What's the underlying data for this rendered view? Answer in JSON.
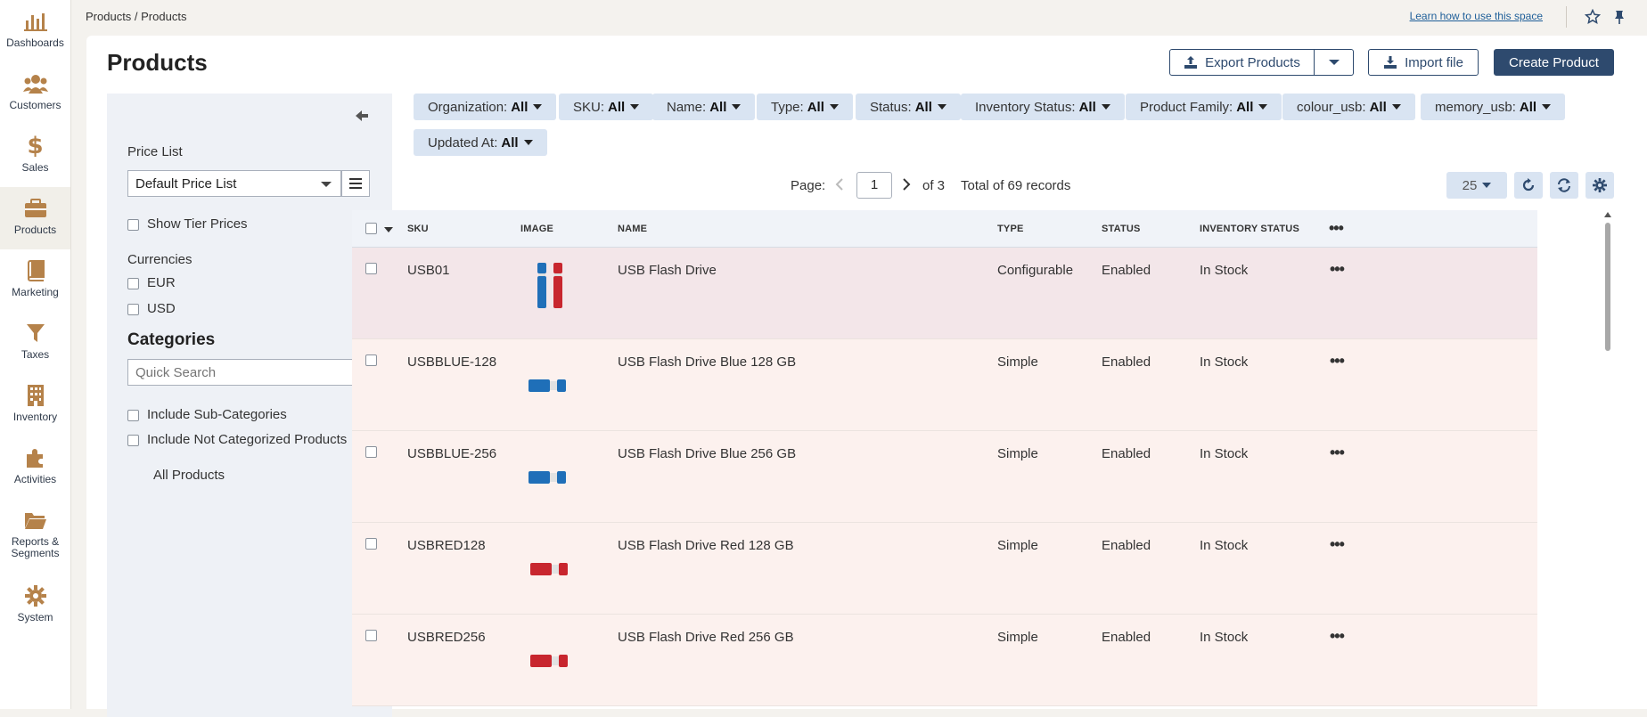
{
  "nav": {
    "items": [
      {
        "label": "Dashboards",
        "icon": "bar-chart-icon"
      },
      {
        "label": "Customers",
        "icon": "users-icon"
      },
      {
        "label": "Sales",
        "icon": "dollar-icon"
      },
      {
        "label": "Products",
        "icon": "briefcase-icon"
      },
      {
        "label": "Marketing",
        "icon": "book-icon"
      },
      {
        "label": "Taxes",
        "icon": "funnel-icon"
      },
      {
        "label": "Inventory",
        "icon": "building-icon"
      },
      {
        "label": "Activities",
        "icon": "puzzle-icon"
      },
      {
        "label": "Reports &\nSegments",
        "icon": "folder-icon"
      },
      {
        "label": "System",
        "icon": "gear-icon"
      }
    ],
    "active": "Products",
    "icon_color": "#b5824a"
  },
  "topbar": {
    "breadcrumb": "Products / Products",
    "learn_link": "Learn how to use this space"
  },
  "page": {
    "title": "Products",
    "export_label": "Export Products",
    "import_label": "Import file",
    "create_label": "Create Product"
  },
  "sidebar": {
    "price_list_label": "Price List",
    "price_list_value": "Default Price List",
    "show_tier_prices": "Show Tier Prices",
    "currencies_label": "Currencies",
    "currencies": [
      "EUR",
      "USD"
    ],
    "categories_heading": "Categories",
    "quick_search_placeholder": "Quick Search",
    "include_sub": "Include Sub-Categories",
    "include_not_categorized": "Include Not Categorized Products",
    "all_products": "All Products"
  },
  "filters": [
    {
      "label": "Organization:",
      "value": "All"
    },
    {
      "label": "SKU:",
      "value": "All"
    },
    {
      "label": "Name:",
      "value": "All"
    },
    {
      "label": "Type:",
      "value": "All"
    },
    {
      "label": "Status:",
      "value": "All"
    },
    {
      "label": "Inventory Status:",
      "value": "All"
    },
    {
      "label": "Product Family:",
      "value": "All"
    },
    {
      "label": "colour_usb:",
      "value": "All"
    },
    {
      "label": "memory_usb:",
      "value": "All"
    },
    {
      "label": "Updated At:",
      "value": "All"
    }
  ],
  "pager": {
    "page_label": "Page:",
    "page": "1",
    "of": "of 3",
    "total": "Total of 69 records",
    "per_page": "25"
  },
  "table": {
    "headers": [
      "SKU",
      "IMAGE",
      "NAME",
      "TYPE",
      "STATUS",
      "INVENTORY STATUS"
    ],
    "rows": [
      {
        "sku": "USB01",
        "name": "USB Flash Drive",
        "type": "Configurable",
        "status": "Enabled",
        "inventory": "In Stock",
        "image": "blue-and-red-usb"
      },
      {
        "sku": "USBBLUE-128",
        "name": "USB Flash Drive Blue 128 GB",
        "type": "Simple",
        "status": "Enabled",
        "inventory": "In Stock",
        "image": "blue-usb"
      },
      {
        "sku": "USBBLUE-256",
        "name": "USB Flash Drive Blue 256 GB",
        "type": "Simple",
        "status": "Enabled",
        "inventory": "In Stock",
        "image": "blue-usb"
      },
      {
        "sku": "USBRED128",
        "name": "USB Flash Drive Red 128 GB",
        "type": "Simple",
        "status": "Enabled",
        "inventory": "In Stock",
        "image": "red-usb"
      },
      {
        "sku": "USBRED256",
        "name": "USB Flash Drive Red 256 GB",
        "type": "Simple",
        "status": "Enabled",
        "inventory": "In Stock",
        "image": "red-usb"
      }
    ]
  },
  "colors": {
    "primary": "#2e4a6e",
    "filter_bg": "#d9e4f2",
    "usb_blue": "#1f6fb8",
    "usb_red": "#c8262e"
  }
}
